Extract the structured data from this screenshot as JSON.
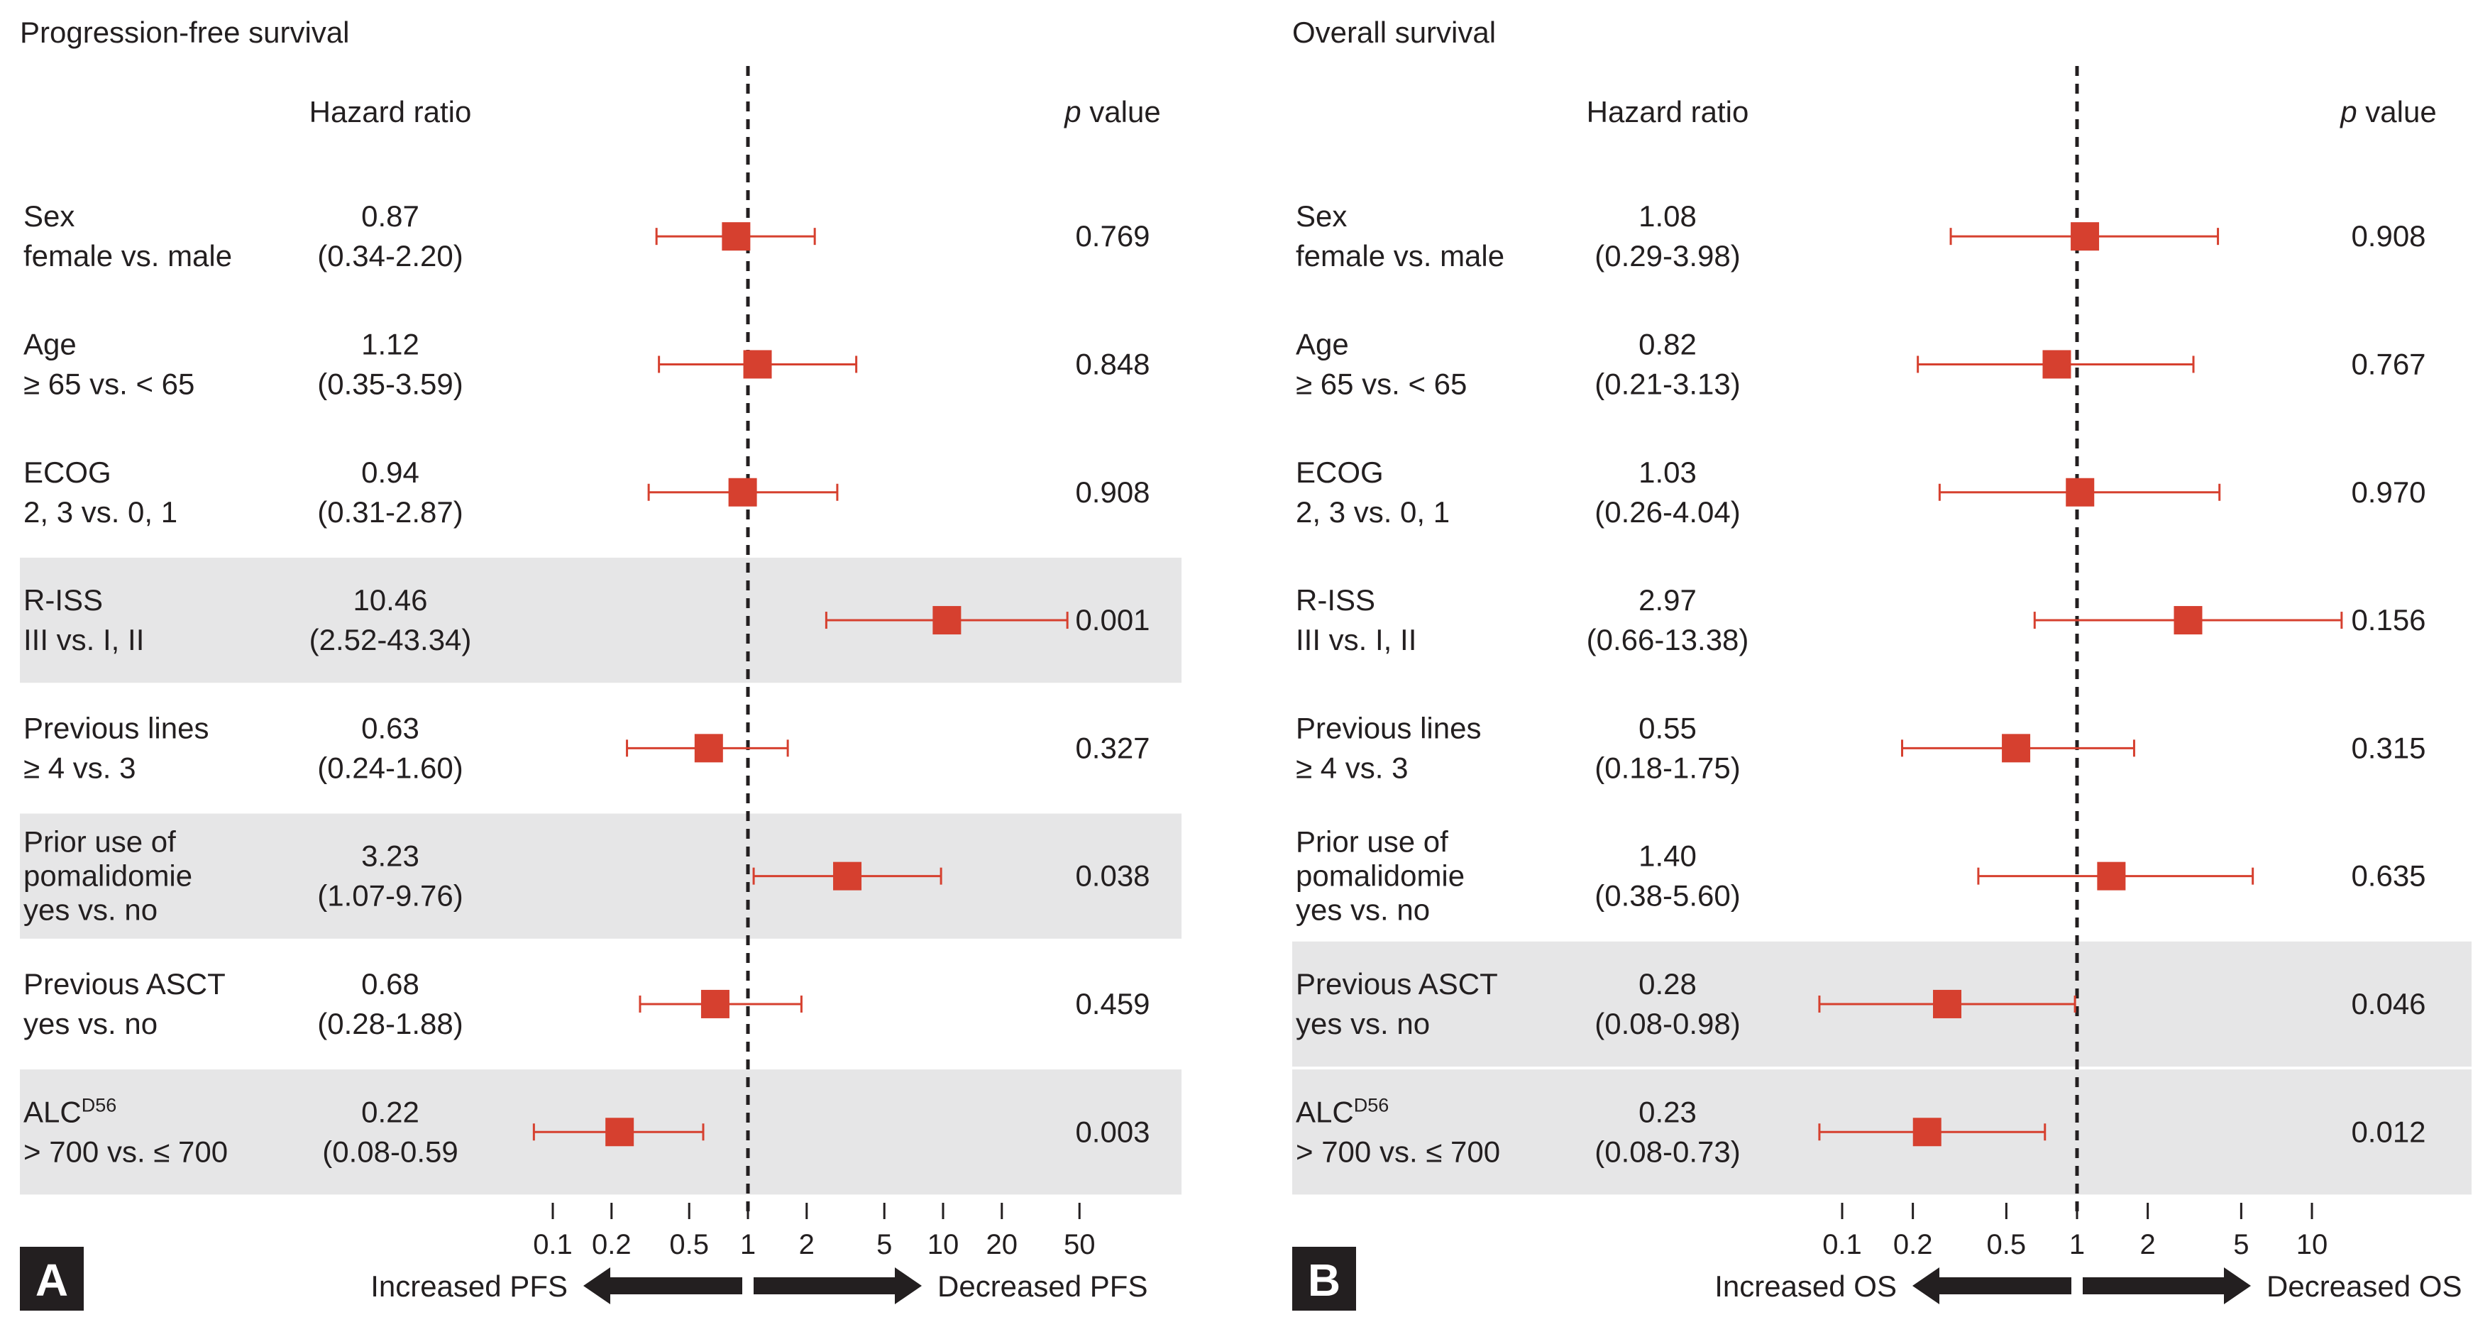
{
  "chart_data": [
    {
      "type": "forest",
      "title": "Progression-free survival",
      "panel_label": "A",
      "hr_header": "Hazard ratio",
      "p_header_italic": "p",
      "p_header_rest": " value",
      "x_scale": "log",
      "x_ticks": [
        0.1,
        0.2,
        0.5,
        1,
        2,
        5,
        10,
        20,
        50
      ],
      "x_tick_labels": [
        "0.1",
        "0.2",
        "0.5",
        "1",
        "2",
        "5",
        "10",
        "20",
        "50"
      ],
      "xlim": [
        0.1,
        50
      ],
      "reference_line": 1,
      "left_arrow_label": "Increased PFS",
      "right_arrow_label": "Decreased PFS",
      "marker_color": "#d6402f",
      "shade_color": "#e6e6e7",
      "rows": [
        {
          "label": [
            "Sex",
            "female vs. male"
          ],
          "hr": 0.87,
          "lo": 0.34,
          "hi": 2.2,
          "hr_text": "0.87",
          "ci_text": "(0.34-2.20)",
          "p_text": "0.769",
          "shaded": false
        },
        {
          "label": [
            "Age",
            "≥ 65 vs. < 65"
          ],
          "hr": 1.12,
          "lo": 0.35,
          "hi": 3.59,
          "hr_text": "1.12",
          "ci_text": "(0.35-3.59)",
          "p_text": "0.848",
          "shaded": false
        },
        {
          "label": [
            "ECOG",
            "2, 3 vs. 0, 1"
          ],
          "hr": 0.94,
          "lo": 0.31,
          "hi": 2.87,
          "hr_text": "0.94",
          "ci_text": "(0.31-2.87)",
          "p_text": "0.908",
          "shaded": false
        },
        {
          "label": [
            "R-ISS",
            "III vs. I, II"
          ],
          "hr": 10.46,
          "lo": 2.52,
          "hi": 43.34,
          "hr_text": "10.46",
          "ci_text": "(2.52-43.34)",
          "p_text": "0.001",
          "shaded": true
        },
        {
          "label": [
            "Previous lines",
            "≥ 4 vs. 3"
          ],
          "hr": 0.63,
          "lo": 0.24,
          "hi": 1.6,
          "hr_text": "0.63",
          "ci_text": "(0.24-1.60)",
          "p_text": "0.327",
          "shaded": false
        },
        {
          "label": [
            "Prior use of",
            "pomalidomie",
            "yes vs. no"
          ],
          "hr": 3.23,
          "lo": 1.07,
          "hi": 9.76,
          "hr_text": "3.23",
          "ci_text": "(1.07-9.76)",
          "p_text": "0.038",
          "shaded": true
        },
        {
          "label": [
            "Previous ASCT",
            "yes vs. no"
          ],
          "hr": 0.68,
          "lo": 0.28,
          "hi": 1.88,
          "hr_text": "0.68",
          "ci_text": "(0.28-1.88)",
          "p_text": "0.459",
          "shaded": false
        },
        {
          "label": [
            "ALC",
            "> 700 vs. ≤ 700"
          ],
          "label_sup": "D56",
          "hr": 0.22,
          "lo": 0.08,
          "hi": 0.59,
          "hr_text": "0.22",
          "ci_text": "(0.08-0.59",
          "p_text": "0.003",
          "shaded": true
        }
      ]
    },
    {
      "type": "forest",
      "title": "Overall survival",
      "panel_label": "B",
      "hr_header": "Hazard ratio",
      "p_header_italic": "p",
      "p_header_rest": " value",
      "x_scale": "log",
      "x_ticks": [
        0.1,
        0.2,
        0.5,
        1,
        2,
        5,
        10
      ],
      "x_tick_labels": [
        "0.1",
        "0.2",
        "0.5",
        "1",
        "2",
        "5",
        "10"
      ],
      "xlim": [
        0.1,
        10
      ],
      "reference_line": 1,
      "left_arrow_label": "Increased OS",
      "right_arrow_label": "Decreased OS",
      "marker_color": "#d6402f",
      "shade_color": "#e6e6e7",
      "rows": [
        {
          "label": [
            "Sex",
            "female vs. male"
          ],
          "hr": 1.08,
          "lo": 0.29,
          "hi": 3.98,
          "hr_text": "1.08",
          "ci_text": "(0.29-3.98)",
          "p_text": "0.908",
          "shaded": false
        },
        {
          "label": [
            "Age",
            "≥ 65 vs. < 65"
          ],
          "hr": 0.82,
          "lo": 0.21,
          "hi": 3.13,
          "hr_text": "0.82",
          "ci_text": "(0.21-3.13)",
          "p_text": "0.767",
          "shaded": false
        },
        {
          "label": [
            "ECOG",
            "2, 3 vs. 0, 1"
          ],
          "hr": 1.03,
          "lo": 0.26,
          "hi": 4.04,
          "hr_text": "1.03",
          "ci_text": "(0.26-4.04)",
          "p_text": "0.970",
          "shaded": false
        },
        {
          "label": [
            "R-ISS",
            "III vs. I, II"
          ],
          "hr": 2.97,
          "lo": 0.66,
          "hi": 13.38,
          "hr_text": "2.97",
          "ci_text": "(0.66-13.38)",
          "p_text": "0.156",
          "shaded": false
        },
        {
          "label": [
            "Previous lines",
            "≥ 4 vs. 3"
          ],
          "hr": 0.55,
          "lo": 0.18,
          "hi": 1.75,
          "hr_text": "0.55",
          "ci_text": "(0.18-1.75)",
          "p_text": "0.315",
          "shaded": false
        },
        {
          "label": [
            "Prior use of",
            "pomalidomie",
            "yes vs. no"
          ],
          "hr": 1.4,
          "lo": 0.38,
          "hi": 5.6,
          "hr_text": "1.40",
          "ci_text": "(0.38-5.60)",
          "p_text": "0.635",
          "shaded": false
        },
        {
          "label": [
            "Previous ASCT",
            "yes vs. no"
          ],
          "hr": 0.28,
          "lo": 0.08,
          "hi": 0.98,
          "hr_text": "0.28",
          "ci_text": "(0.08-0.98)",
          "p_text": "0.046",
          "shaded": true
        },
        {
          "label": [
            "ALC",
            "> 700 vs. ≤ 700"
          ],
          "label_sup": "D56",
          "hr": 0.23,
          "lo": 0.08,
          "hi": 0.73,
          "hr_text": "0.23",
          "ci_text": "(0.08-0.73)",
          "p_text": "0.012",
          "shaded": true
        }
      ]
    }
  ]
}
